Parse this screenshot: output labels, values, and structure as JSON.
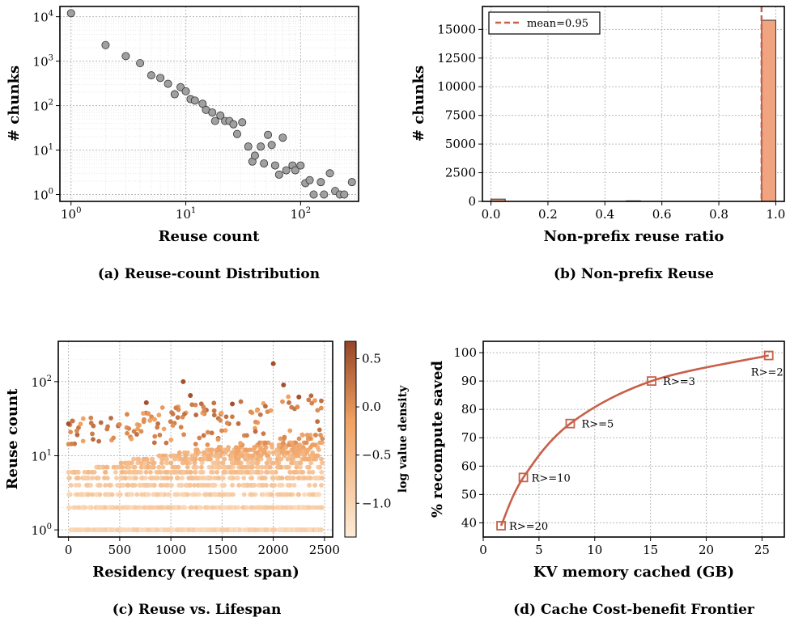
{
  "panels": {
    "a": {
      "caption": "(a) Reuse-count Distribution",
      "chart_data": {
        "type": "scatter",
        "xscale": "log",
        "yscale": "log",
        "xlabel": "Reuse count",
        "ylabel": "# chunks",
        "xlim": [
          0.8,
          320
        ],
        "ylim": [
          0.7,
          17000
        ],
        "xticks": [
          {
            "v": 1,
            "b": "10",
            "e": "0"
          },
          {
            "v": 10,
            "b": "10",
            "e": "1"
          },
          {
            "v": 100,
            "b": "10",
            "e": "2"
          }
        ],
        "yticks": [
          {
            "v": 1,
            "b": "10",
            "e": "0"
          },
          {
            "v": 10,
            "b": "10",
            "e": "1"
          },
          {
            "v": 100,
            "b": "10",
            "e": "2"
          },
          {
            "v": 1000,
            "b": "10",
            "e": "3"
          },
          {
            "v": 10000,
            "b": "10",
            "e": "4"
          }
        ],
        "grid": true,
        "marker_color": "#a0a0a0",
        "points": [
          [
            1,
            12000
          ],
          [
            2,
            2300
          ],
          [
            3,
            1300
          ],
          [
            4,
            900
          ],
          [
            5,
            480
          ],
          [
            6,
            420
          ],
          [
            7,
            310
          ],
          [
            8,
            180
          ],
          [
            9,
            260
          ],
          [
            10,
            210
          ],
          [
            11,
            140
          ],
          [
            12,
            130
          ],
          [
            14,
            110
          ],
          [
            15,
            80
          ],
          [
            17,
            70
          ],
          [
            18,
            45
          ],
          [
            20,
            60
          ],
          [
            22,
            45
          ],
          [
            24,
            45
          ],
          [
            26,
            38
          ],
          [
            28,
            23
          ],
          [
            31,
            42
          ],
          [
            35,
            12
          ],
          [
            38,
            5.5
          ],
          [
            40,
            7.5
          ],
          [
            45,
            12
          ],
          [
            48,
            5
          ],
          [
            52,
            22
          ],
          [
            56,
            13
          ],
          [
            60,
            4.5
          ],
          [
            65,
            2.8
          ],
          [
            70,
            19
          ],
          [
            75,
            3.5
          ],
          [
            85,
            4.5
          ],
          [
            90,
            3.5
          ],
          [
            100,
            4.5
          ],
          [
            110,
            1.8
          ],
          [
            120,
            2.1
          ],
          [
            130,
            1.0
          ],
          [
            150,
            1.9
          ],
          [
            160,
            1.0
          ],
          [
            180,
            3.0
          ],
          [
            200,
            1.2
          ],
          [
            220,
            1.0
          ],
          [
            240,
            1.0
          ],
          [
            280,
            1.9
          ]
        ]
      }
    },
    "b": {
      "caption": "(b) Non-prefix Reuse",
      "chart_data": {
        "type": "bar",
        "xlabel": "Non-prefix reuse ratio",
        "ylabel": "# chunks",
        "xlim": [
          -0.03,
          1.03
        ],
        "ylim": [
          0,
          17000
        ],
        "xticks": [
          "0.0",
          "0.2",
          "0.4",
          "0.6",
          "0.8",
          "1.0"
        ],
        "yticks": [
          "0",
          "2500",
          "5000",
          "7500",
          "10000",
          "12500",
          "15000"
        ],
        "grid": true,
        "bar_color": "#f0a47f",
        "bins": [
          [
            0.0,
            0.05,
            200
          ],
          [
            0.475,
            0.525,
            50
          ],
          [
            0.95,
            1.0,
            15800
          ]
        ],
        "mean": 0.95,
        "legend": "mean=0.95",
        "legend_position": "top-left",
        "mean_color": "#c8604a"
      }
    },
    "c": {
      "caption": "(c) Reuse vs. Lifespan",
      "chart_data": {
        "type": "scatter",
        "xlabel": "Residency (request span)",
        "ylabel": "Reuse count",
        "yscale": "log",
        "xlim": [
          -100,
          2580
        ],
        "ylim": [
          0.8,
          350
        ],
        "xticks": [
          "0",
          "500",
          "1000",
          "1500",
          "2000",
          "2500"
        ],
        "yticks": [
          {
            "v": 1,
            "b": "10",
            "e": "0"
          },
          {
            "v": 10,
            "b": "10",
            "e": "1"
          },
          {
            "v": 100,
            "b": "10",
            "e": "2"
          }
        ],
        "colorbar": {
          "label": "log value density",
          "range": [
            -1.35,
            0.68
          ],
          "ticks": [
            "0.5",
            "0.0",
            "−0.5",
            "−1.0"
          ],
          "tick_values": [
            0.5,
            0.0,
            -0.5,
            -1.0
          ]
        },
        "grid": true,
        "highlights": [
          [
            0,
            27
          ],
          [
            1120,
            100
          ],
          [
            2000,
            175
          ],
          [
            760,
            52
          ],
          [
            1190,
            65
          ],
          [
            1600,
            50
          ],
          [
            2100,
            90
          ],
          [
            2250,
            62
          ]
        ]
      }
    },
    "d": {
      "caption": "(d) Cache Cost-benefit Frontier",
      "chart_data": {
        "type": "line",
        "xlabel": "KV memory cached (GB)",
        "ylabel": "% recompute saved",
        "xlim": [
          0,
          27
        ],
        "ylim": [
          35,
          104
        ],
        "xticks": [
          "0",
          "5",
          "10",
          "15",
          "20",
          "25"
        ],
        "yticks": [
          "40",
          "50",
          "60",
          "70",
          "80",
          "90",
          "100"
        ],
        "grid": true,
        "line_color": "#c8604a",
        "series": [
          {
            "x": [
              1.6,
              3.6,
              7.8,
              15.1,
              25.6
            ],
            "y": [
              39,
              56,
              75,
              90,
              99
            ],
            "labels": [
              "R>=20",
              "R>=10",
              "R>=5",
              "R>=3",
              "R>=2"
            ]
          }
        ]
      }
    }
  }
}
